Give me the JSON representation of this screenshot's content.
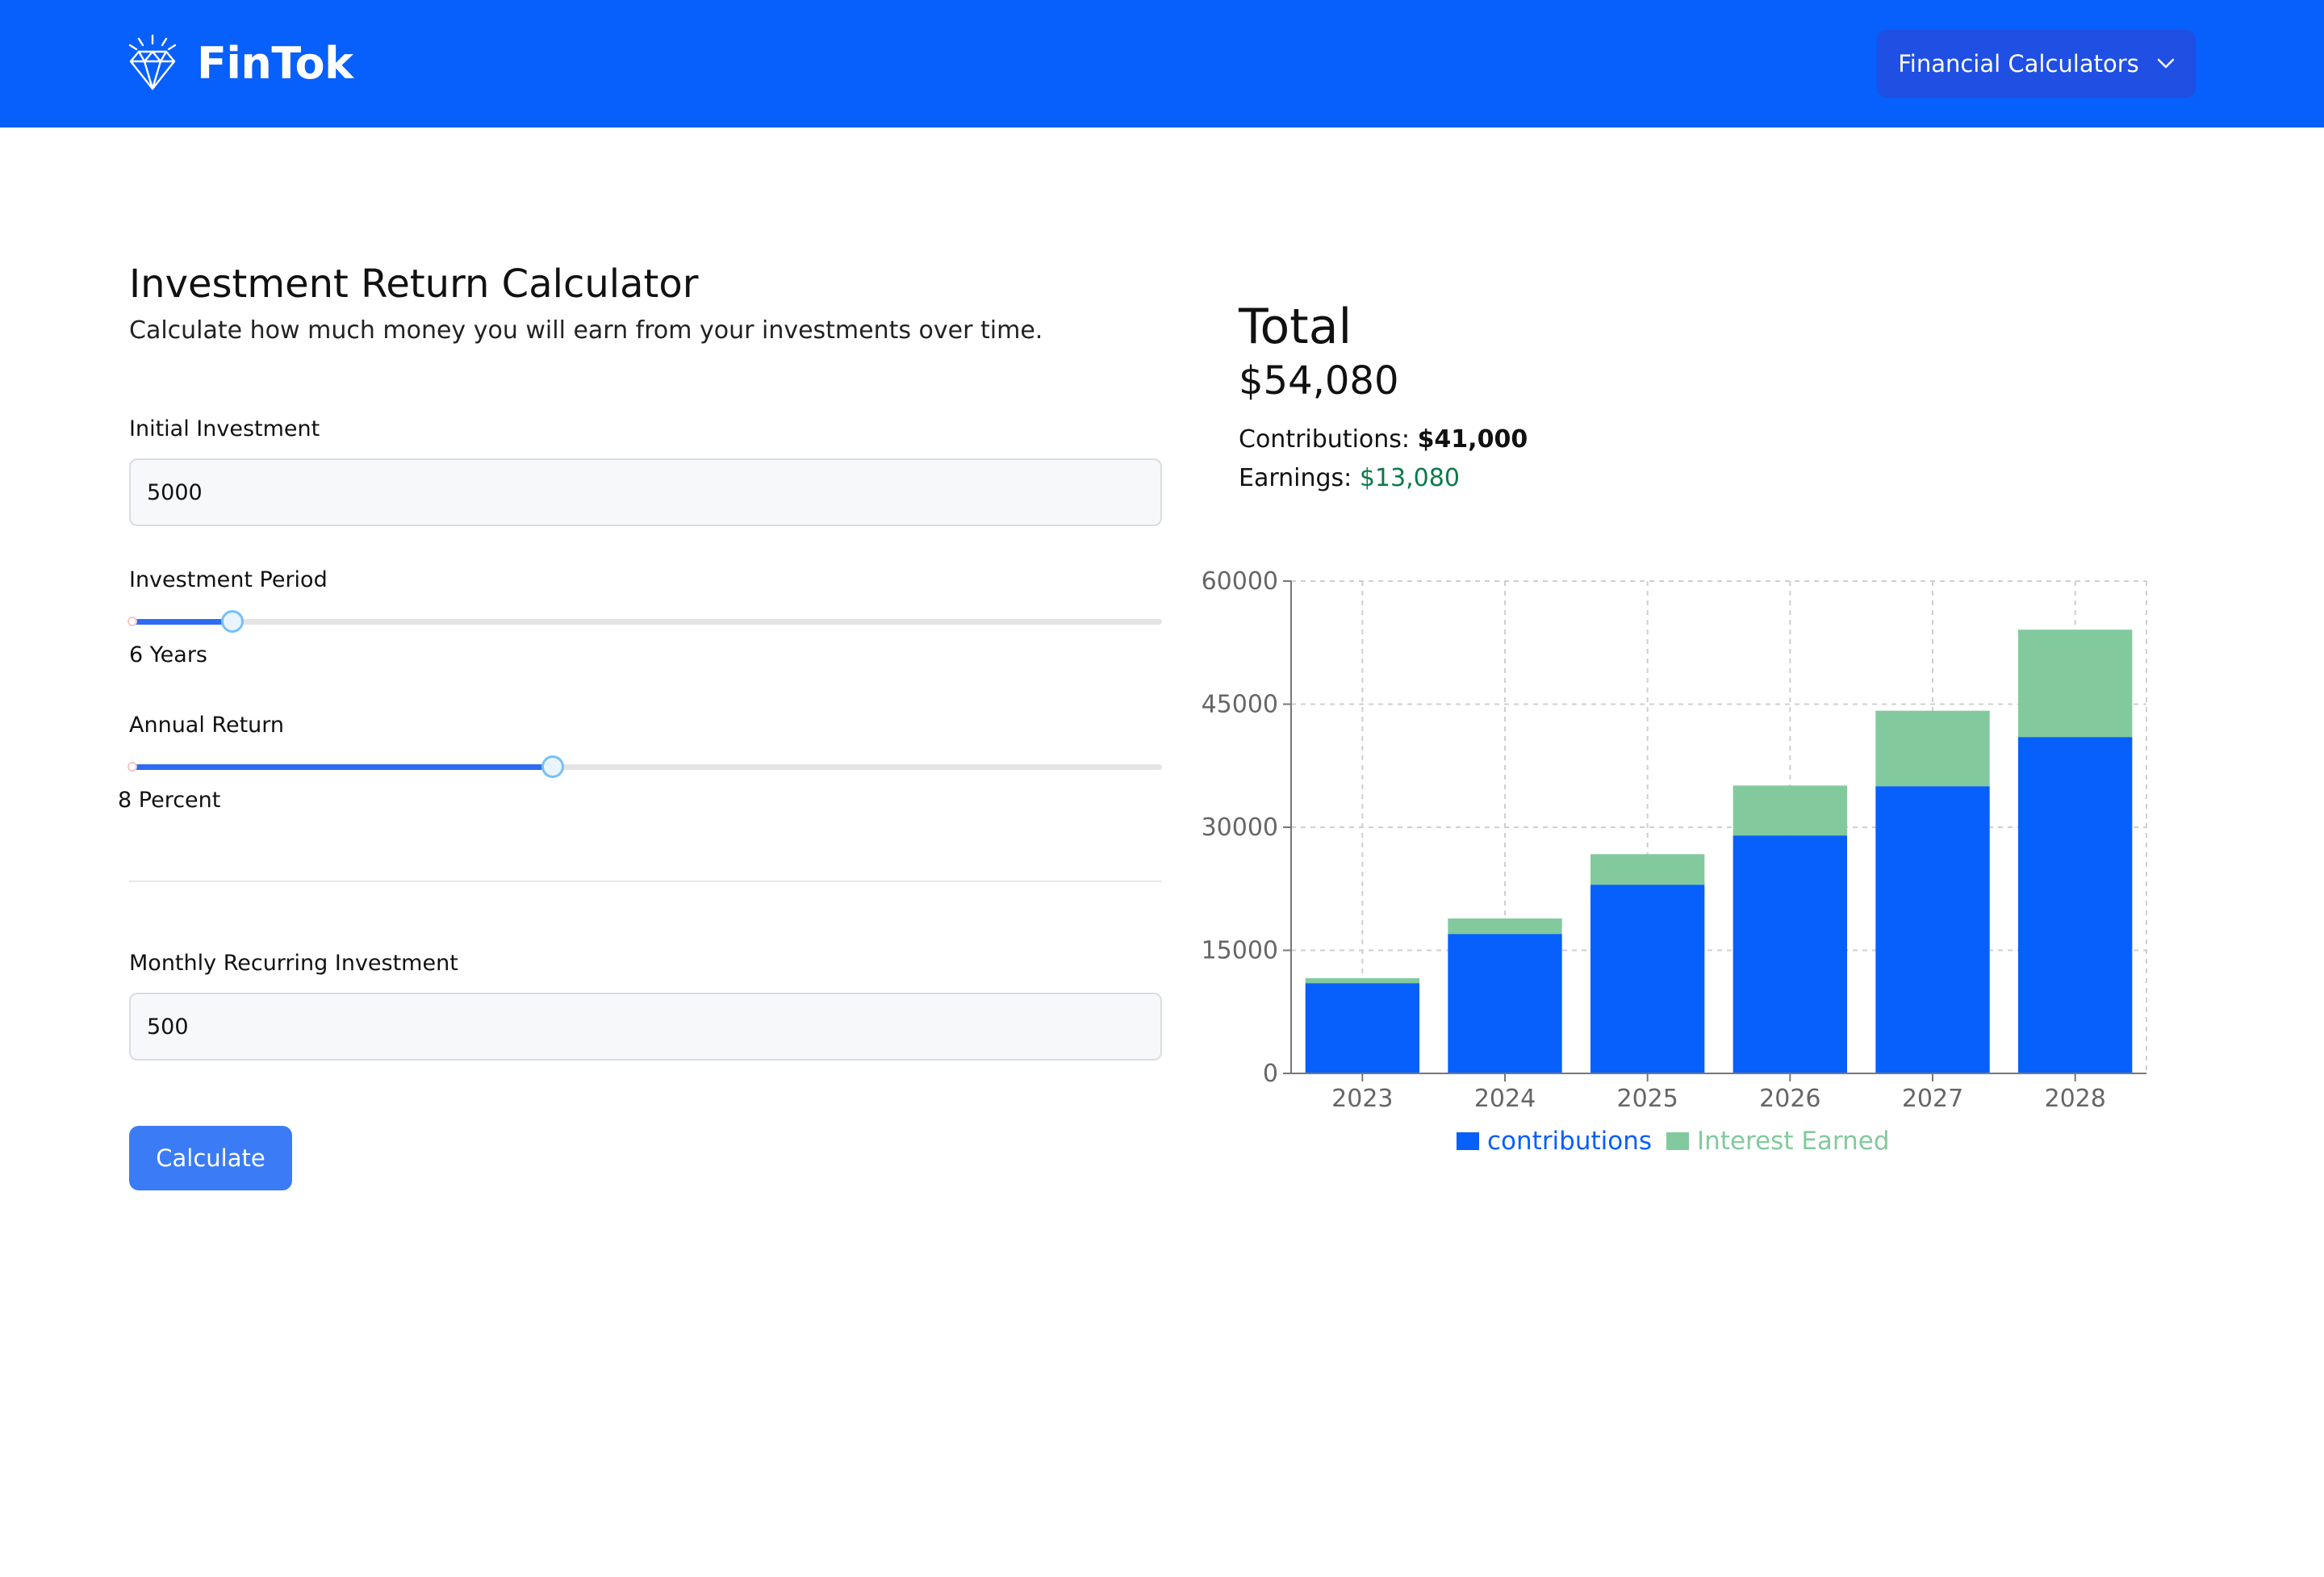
{
  "header": {
    "brand": "FinTok",
    "menu_label": "Financial Calculators"
  },
  "form": {
    "title": "Investment Return Calculator",
    "subtitle": "Calculate how much money you will earn from your investments over time.",
    "initial_investment": {
      "label": "Initial Investment",
      "value": "5000"
    },
    "investment_period": {
      "label": "Investment Period",
      "value_text": "6 Years",
      "fraction": 0.1
    },
    "annual_return": {
      "label": "Annual Return",
      "value_text": "8 Percent",
      "fraction": 0.41
    },
    "monthly_recurring": {
      "label": "Monthly Recurring Investment",
      "value": "500"
    },
    "calculate_label": "Calculate"
  },
  "results": {
    "total_label": "Total",
    "total_value": "$54,080",
    "contributions_label": "Contributions:",
    "contributions_value": "$41,000",
    "earnings_label": "Earnings:",
    "earnings_value": "$13,080"
  },
  "colors": {
    "brand_blue": "#075ffc",
    "contributions": "#075ffc",
    "interest": "#82ca9d",
    "earnings_text": "#0b7a4a"
  },
  "chart_data": {
    "type": "bar",
    "stacked": true,
    "categories": [
      "2023",
      "2024",
      "2025",
      "2026",
      "2027",
      "2028"
    ],
    "series": [
      {
        "name": "contributions",
        "values": [
          11000,
          17000,
          23000,
          29000,
          35000,
          41000
        ]
      },
      {
        "name": "Interest Earned",
        "values": [
          600,
          1880,
          3720,
          6080,
          9200,
          13080
        ]
      }
    ],
    "ylim": [
      0,
      60000
    ],
    "yticks": [
      0,
      15000,
      30000,
      45000,
      60000
    ],
    "grid": true,
    "legend": "bottom"
  }
}
